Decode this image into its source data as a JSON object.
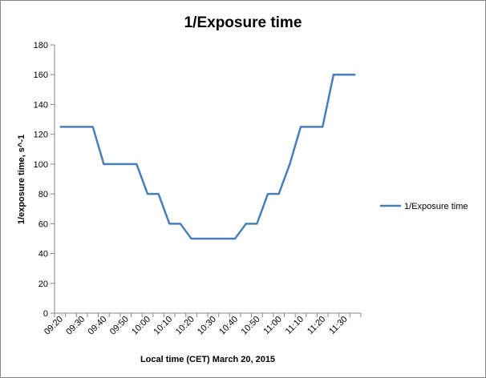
{
  "chart_data": {
    "type": "line",
    "title": "1/Exposure time",
    "x_label": "Local time (CET)  March  20, 2015",
    "y_label": "1/exposure time, s^-1",
    "categories": [
      "09:20",
      null,
      "09:30",
      null,
      "09:40",
      null,
      "09:50",
      null,
      "10:00",
      null,
      "10:10",
      null,
      "10:20",
      null,
      "10:30",
      null,
      "10:40",
      null,
      "10:50",
      null,
      "11:00",
      null,
      "11:10",
      null,
      "11:20",
      null,
      "11:30",
      null
    ],
    "series": [
      {
        "name": "1/Exposure time",
        "color": "#4a7ebb",
        "values": [
          125,
          125,
          125,
          125,
          100,
          100,
          100,
          100,
          80,
          80,
          60,
          60,
          50,
          50,
          50,
          50,
          50,
          60,
          60,
          80,
          80,
          100,
          125,
          125,
          125,
          160,
          160,
          160
        ]
      }
    ],
    "ylim": [
      0,
      180
    ],
    "yticks": [
      0,
      20,
      40,
      60,
      80,
      100,
      120,
      140,
      160,
      180
    ],
    "grid": false,
    "legend": "right"
  }
}
